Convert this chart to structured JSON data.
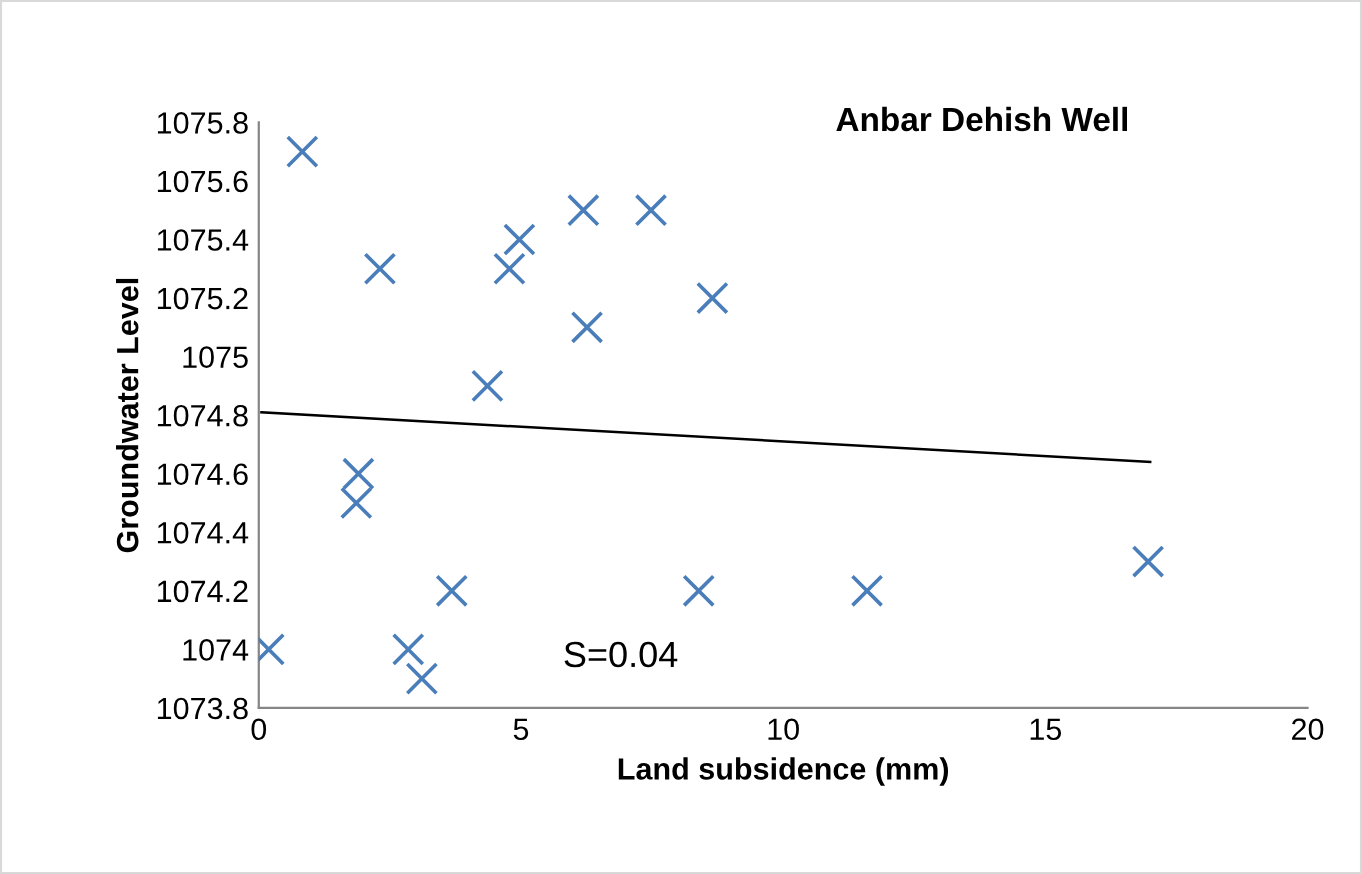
{
  "chart_data": {
    "type": "scatter",
    "xlabel": "Land subsidence (mm)",
    "ylabel": "Groundwater Level",
    "annotations": [
      "Anbar Dehish Well",
      "S=0.04"
    ],
    "series": [
      {
        "color": "#4a7ebb",
        "marker": "cross",
        "x": [
          0.19,
          0.83,
          1.9,
          1.86,
          2.31,
          2.85,
          3.11,
          3.68,
          4.36,
          4.78,
          4.97,
          6.19,
          6.26,
          7.48,
          8.39,
          8.65,
          11.6,
          16.96
        ],
        "values": [
          1074.0,
          1075.7,
          1074.6,
          1074.5,
          1075.3,
          1074.0,
          1073.9,
          1074.2,
          1074.9,
          1075.3,
          1075.4,
          1075.5,
          1075.1,
          1075.5,
          1074.2,
          1075.2,
          1074.2,
          1074.3
        ]
      },
      {
        "type": "line",
        "color": "#000000",
        "x": [
          0.05,
          17.0
        ],
        "values": [
          1074.81,
          1074.64
        ]
      }
    ],
    "xlim": [
      0,
      20
    ],
    "xticks": [
      0,
      5,
      10,
      15,
      20
    ],
    "ylim": [
      1073.8,
      1075.8
    ],
    "yticks": [
      1073.8,
      1074,
      1074.2,
      1074.4,
      1074.6,
      1074.8,
      1075,
      1075.2,
      1075.4,
      1075.6,
      1075.8
    ],
    "grid": false,
    "legend": false
  }
}
